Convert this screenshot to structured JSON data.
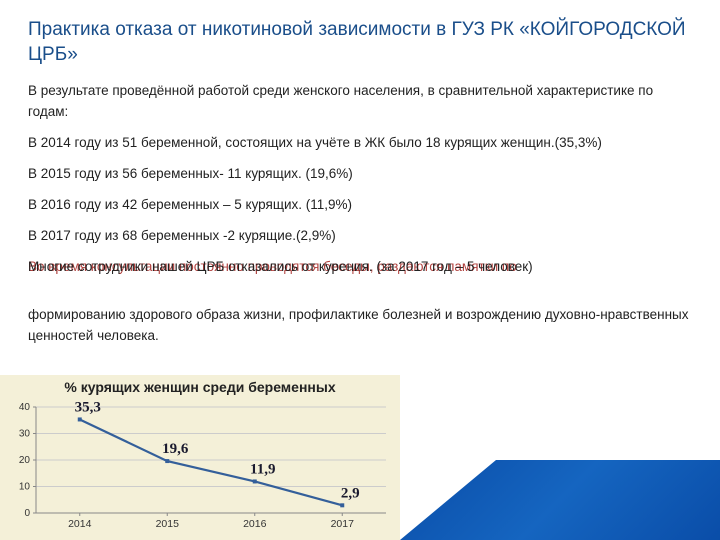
{
  "title": "Практика отказа от никотиновой зависимости в ГУЗ РК «КОЙГОРОДСКОЙ ЦРБ»",
  "p1": "В результате проведённой работой среди женского населения, в сравнительной характеристике по годам:",
  "p2": "В 2014 году из 51 беременной, состоящих на учёте в ЖК было 18 курящих женщин.(35,3%)",
  "p3": "В 2015 году из 56 беременных- 11 курящих. (19,6%)",
  "p4": "В 2016 году из 42 беременных – 5 курящих. (11,9%)",
  "p5": "В 2017 году из 68 беременных -2 курящие.(2,9%)",
  "overlap_a": "Многие сотрудники нашей ЦРБ отказались от курения. (за 2017 год – 5 человек)",
  "overlap_b": "Во время консультации постоянно проводятся беседы, раздаются памятки по",
  "p6": "формированию здорового образа жизни, профилактике болезней и возрождению духовно-нравственных ценностей человека.",
  "chart": {
    "type": "line",
    "title": "% курящих женщин среди беременных",
    "categories": [
      "2014",
      "2015",
      "2016",
      "2017"
    ],
    "values": [
      35.3,
      19.6,
      11.9,
      2.9
    ],
    "value_labels": [
      "35,3",
      "19,6",
      "11,9",
      "2,9"
    ],
    "ylim": [
      0,
      40
    ],
    "ytick_step": 10,
    "line_color": "#345f9a",
    "marker_size": 4,
    "background_color": "#f4f0d8",
    "grid_color": "#cccccc",
    "label_fontsize": 10,
    "value_fontsize": 15,
    "title_fontsize": 14
  },
  "colors": {
    "title": "#1a4e8a",
    "body_text": "#222222",
    "overlap_red": "#b0413e",
    "ribbon_start": "#0a4da8",
    "ribbon_mid": "#1565c0"
  }
}
